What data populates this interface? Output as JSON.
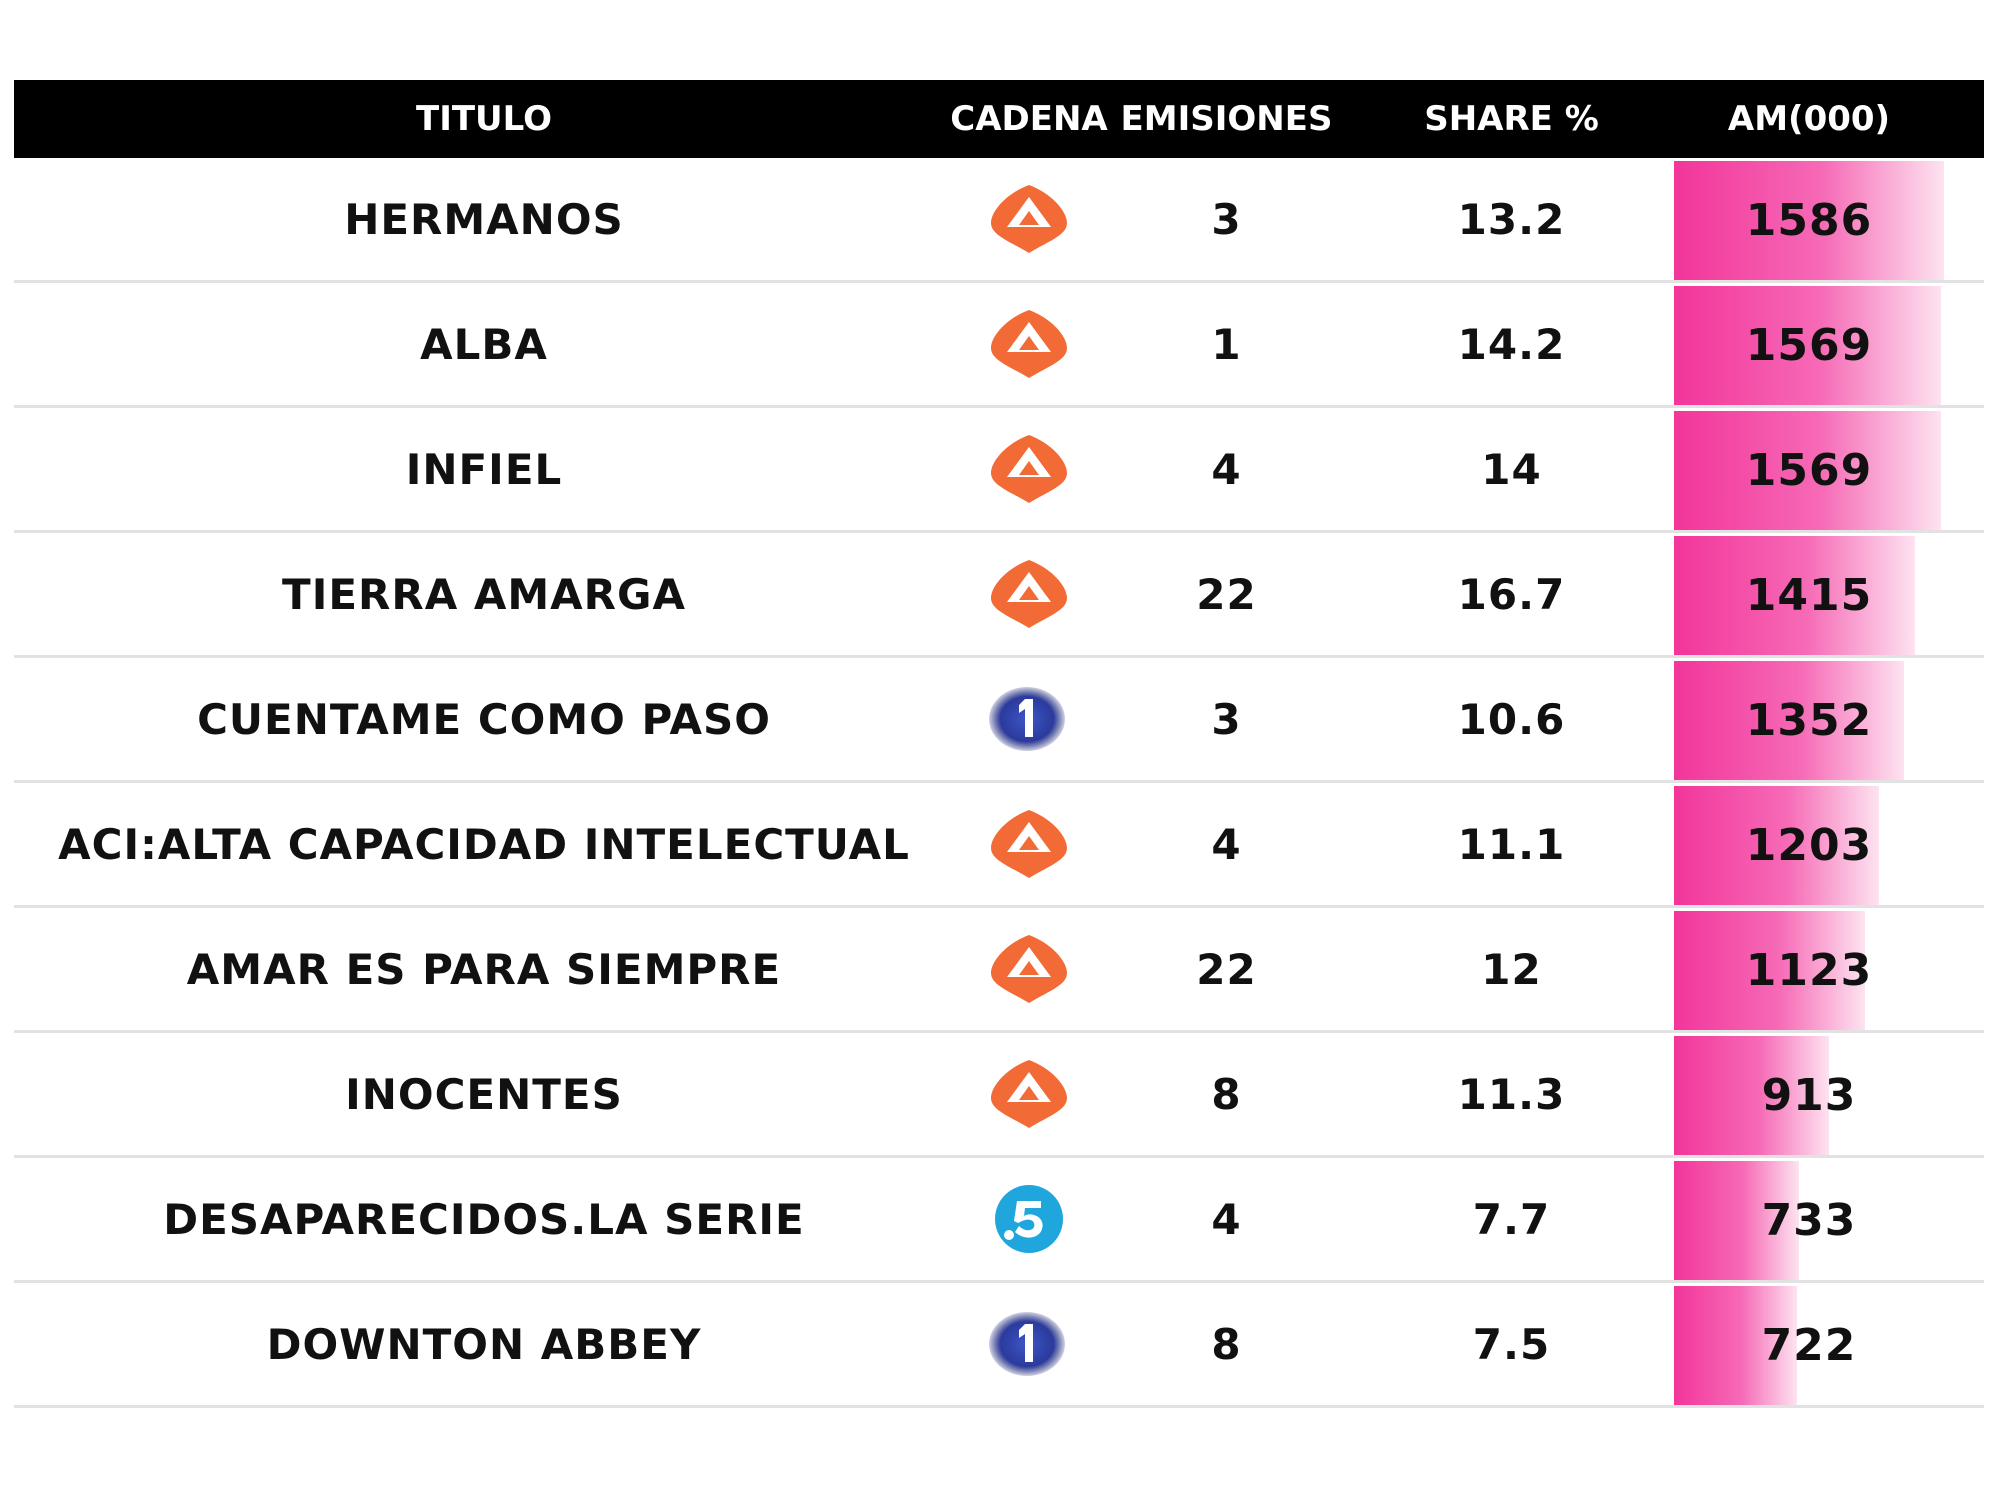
{
  "chart_data": {
    "type": "table",
    "columns": [
      "TITULO",
      "CADENA",
      "EMISIONES",
      "SHARE %",
      "AM(000)"
    ],
    "bar_max": 1586,
    "rows": [
      {
        "title": "HERMANOS",
        "channel": "antena3",
        "emissions": "3",
        "share": "13.2",
        "am": "1586"
      },
      {
        "title": "ALBA",
        "channel": "antena3",
        "emissions": "1",
        "share": "14.2",
        "am": "1569"
      },
      {
        "title": "INFIEL",
        "channel": "antena3",
        "emissions": "4",
        "share": "14",
        "am": "1569"
      },
      {
        "title": "TIERRA AMARGA",
        "channel": "antena3",
        "emissions": "22",
        "share": "16.7",
        "am": "1415"
      },
      {
        "title": "CUENTAME COMO PASO",
        "channel": "la1",
        "emissions": "3",
        "share": "10.6",
        "am": "1352"
      },
      {
        "title": "ACI:ALTA CAPACIDAD INTELECTUAL",
        "channel": "antena3",
        "emissions": "4",
        "share": "11.1",
        "am": "1203"
      },
      {
        "title": "AMAR ES PARA SIEMPRE",
        "channel": "antena3",
        "emissions": "22",
        "share": "12",
        "am": "1123"
      },
      {
        "title": "INOCENTES",
        "channel": "antena3",
        "emissions": "8",
        "share": "11.3",
        "am": "913"
      },
      {
        "title": "DESAPARECIDOS.LA SERIE",
        "channel": "telecinco",
        "emissions": "4",
        "share": "7.7",
        "am": "733"
      },
      {
        "title": "DOWNTON ABBEY",
        "channel": "la1",
        "emissions": "8",
        "share": "7.5",
        "am": "722"
      }
    ]
  },
  "colors": {
    "header_bg": "#000000",
    "bar": "#f2359a",
    "antena3": "#f26b36",
    "la1": "#2b3a9c",
    "telecinco": "#1fa6dd"
  },
  "icons": {
    "antena3": "antena3-logo-icon",
    "la1": "la1-logo-icon",
    "telecinco": "telecinco-logo-icon"
  }
}
